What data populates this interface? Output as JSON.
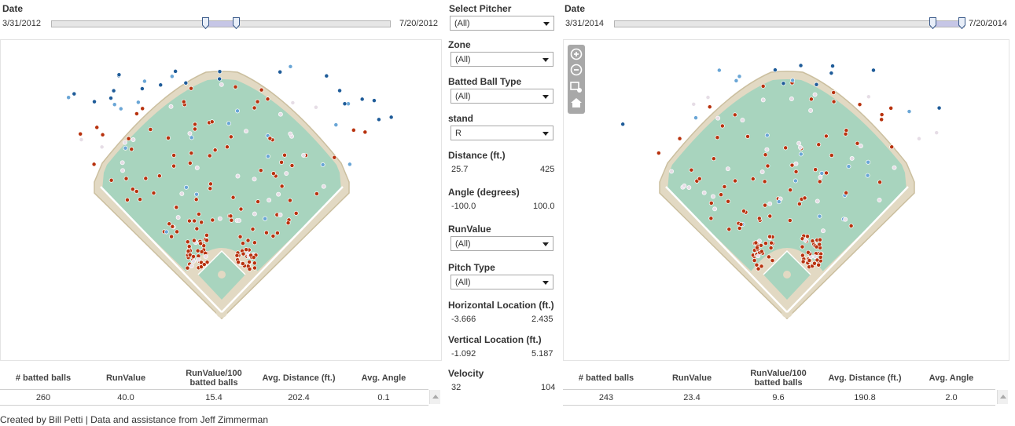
{
  "left": {
    "date_label": "Date",
    "date_start": "3/31/2012",
    "date_end": "7/20/2012",
    "stats": {
      "headers": [
        "# batted balls",
        "RunValue",
        "RunValue/100 batted balls",
        "Avg. Distance (ft.)",
        "Avg. Angle"
      ],
      "values": [
        "260",
        "40.0",
        "15.4",
        "202.4",
        "0.1"
      ]
    }
  },
  "right": {
    "date_label": "Date",
    "date_start": "3/31/2014",
    "date_end": "7/20/2014",
    "stats": {
      "headers": [
        "# batted balls",
        "RunValue",
        "RunValue/100 batted balls",
        "Avg. Distance (ft.)",
        "Avg. Angle"
      ],
      "values": [
        "243",
        "23.4",
        "9.6",
        "190.8",
        "2.0"
      ]
    }
  },
  "filters": {
    "pitcher": {
      "title": "Select Pitcher",
      "value": "(All)"
    },
    "zone": {
      "title": "Zone",
      "value": "(All)"
    },
    "batted_ball_type": {
      "title": "Batted Ball Type",
      "value": "(All)"
    },
    "stand": {
      "title": "stand",
      "value": "R"
    },
    "distance": {
      "title": "Distance (ft.)",
      "min": "25.7",
      "max": "425"
    },
    "angle": {
      "title": "Angle (degrees)",
      "min": "-100.0",
      "max": "100.0"
    },
    "runvalue": {
      "title": "RunValue",
      "value": "(All)"
    },
    "pitch_type": {
      "title": "Pitch Type",
      "value": "(All)"
    },
    "horizontal": {
      "title": "Horizontal Location (ft.)",
      "min": "-3.666",
      "max": "2.435"
    },
    "vertical": {
      "title": "Vertical Location (ft.)",
      "min": "-1.092",
      "max": "5.187"
    },
    "velocity": {
      "title": "Velocity",
      "min": "32",
      "max": "104"
    }
  },
  "toolbar": {
    "zoom_in": "+",
    "zoom_out": "−",
    "zoom_area_icon": "zoom-area-icon",
    "home_icon": "home-icon"
  },
  "colors": {
    "grass": "#a8d4be",
    "dirt": "#e2d9c3",
    "dirt_edge": "#cbbf9f",
    "lines": "#ffffff",
    "dot_red": "#b8320e",
    "dot_light": "#e6dde6",
    "dot_lightblue": "#6aa6d6",
    "dot_darkblue": "#1f5c99"
  },
  "footer": "Created by Bill Petti | Data and assistance from Jeff Zimmerman"
}
